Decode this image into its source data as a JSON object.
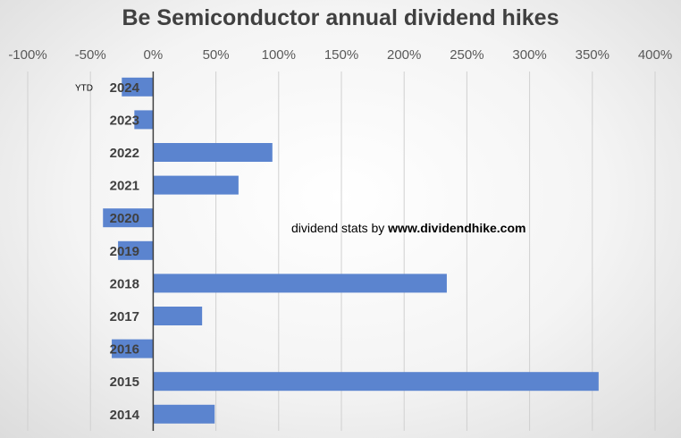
{
  "chart_data": {
    "type": "bar",
    "orientation": "horizontal",
    "title": "Be Semiconductor annual dividend hikes",
    "categories": [
      "2024",
      "2023",
      "2022",
      "2021",
      "2020",
      "2019",
      "2018",
      "2017",
      "2016",
      "2015",
      "2014"
    ],
    "values": [
      -25,
      -15,
      95,
      68,
      -40,
      -28,
      234,
      39,
      -33,
      355,
      49
    ],
    "x_ticks": [
      "-100%",
      "-50%",
      "0%",
      "50%",
      "100%",
      "150%",
      "200%",
      "250%",
      "300%",
      "350%",
      "400%"
    ],
    "xlim": [
      -100,
      400
    ],
    "bar_color": "#5b84cf",
    "grid": "vertical",
    "category_annotation": {
      "category": "2024",
      "text": "YTD"
    },
    "annotation": {
      "prefix": "dividend stats by ",
      "source": "www.dividendhike.com"
    }
  }
}
